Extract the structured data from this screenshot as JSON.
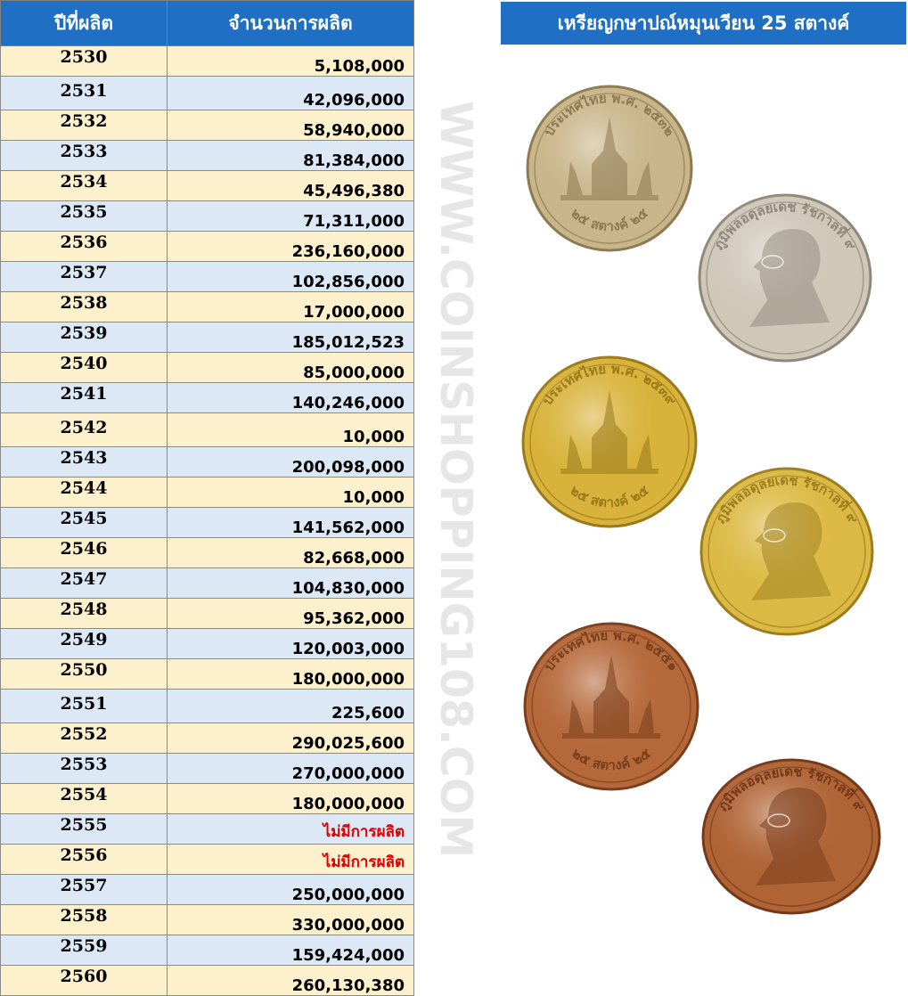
{
  "table": {
    "header_year": "ปีที่ผลิต",
    "header_amount": "จำนวนการผลิต",
    "rows": [
      {
        "year": "2530",
        "amount": "5,108,000"
      },
      {
        "year": "2531",
        "amount": "42,096,000"
      },
      {
        "year": "2532",
        "amount": "58,940,000"
      },
      {
        "year": "2533",
        "amount": "81,384,000"
      },
      {
        "year": "2534",
        "amount": "45,496,380"
      },
      {
        "year": "2535",
        "amount": "71,311,000"
      },
      {
        "year": "2536",
        "amount": "236,160,000"
      },
      {
        "year": "2537",
        "amount": "102,856,000"
      },
      {
        "year": "2538",
        "amount": "17,000,000"
      },
      {
        "year": "2539",
        "amount": "185,012,523"
      },
      {
        "year": "2540",
        "amount": "85,000,000"
      },
      {
        "year": "2541",
        "amount": "140,246,000"
      },
      {
        "year": "2542",
        "amount": "10,000"
      },
      {
        "year": "2543",
        "amount": "200,098,000"
      },
      {
        "year": "2544",
        "amount": "10,000"
      },
      {
        "year": "2545",
        "amount": "141,562,000"
      },
      {
        "year": "2546",
        "amount": "82,668,000"
      },
      {
        "year": "2547",
        "amount": "104,830,000"
      },
      {
        "year": "2548",
        "amount": "95,362,000"
      },
      {
        "year": "2549",
        "amount": "120,003,000"
      },
      {
        "year": "2550",
        "amount": "180,000,000"
      },
      {
        "year": "2551",
        "amount": "225,600"
      },
      {
        "year": "2552",
        "amount": "290,025,600"
      },
      {
        "year": "2553",
        "amount": "270,000,000"
      },
      {
        "year": "2554",
        "amount": "180,000,000"
      },
      {
        "year": "2555",
        "amount": "ไม่มีการผลิต",
        "none": true
      },
      {
        "year": "2556",
        "amount": "ไม่มีการผลิต",
        "none": true
      },
      {
        "year": "2557",
        "amount": "250,000,000"
      },
      {
        "year": "2558",
        "amount": "330,000,000"
      },
      {
        "year": "2559",
        "amount": "159,424,000"
      },
      {
        "year": "2560",
        "amount": "260,130,380"
      }
    ]
  },
  "watermark": "WWW.COINSHOPPING108.COM",
  "coin_panel": {
    "title": "เหรียญกษาปณ์หมุนเวียน 25 สตางค์",
    "coins": [
      {
        "name": "coin-copper-nickel-reverse-temple",
        "metal": "copper-nickel",
        "face": "reverse",
        "fill": "#c9b58a",
        "rim": "#8d7a52",
        "top_text": "ประเทศไทย พ.ศ. ๒๕๓๒",
        "bottom_text": "๒๕ สตางค์ ๒๕"
      },
      {
        "name": "coin-copper-nickel-obverse-king",
        "metal": "copper-nickel",
        "face": "obverse",
        "fill": "#cfc7b8",
        "rim": "#8f877a",
        "top_text": "ภูมิพลอดุลยเดช รัชกาลที่ ๙"
      },
      {
        "name": "coin-brass-reverse-temple",
        "metal": "brass",
        "face": "reverse",
        "fill": "#d8b23a",
        "rim": "#9a7a1a",
        "top_text": "ประเทศไทย พ.ศ. ๒๕๓๙",
        "bottom_text": "๒๕ สตางค์ ๒๕"
      },
      {
        "name": "coin-brass-obverse-king",
        "metal": "brass",
        "face": "obverse",
        "fill": "#dcb944",
        "rim": "#9c7e1e",
        "top_text": "ภูมิพลอดุลยเดช รัชกาลที่ ๙"
      },
      {
        "name": "coin-copper-plated-reverse-temple",
        "metal": "copper-plated",
        "face": "reverse",
        "fill": "#b5683a",
        "rim": "#7a3f1c",
        "top_text": "ประเทศไทย พ.ศ. ๒๕๕๑",
        "bottom_text": "๒๕ สตางค์ ๒๕"
      },
      {
        "name": "coin-copper-plated-obverse-king",
        "metal": "copper-plated",
        "face": "obverse",
        "fill": "#b06436",
        "rim": "#74391a",
        "top_text": "ภูมิพลอดุลยเดช รัชกาลที่ ๙"
      }
    ]
  }
}
